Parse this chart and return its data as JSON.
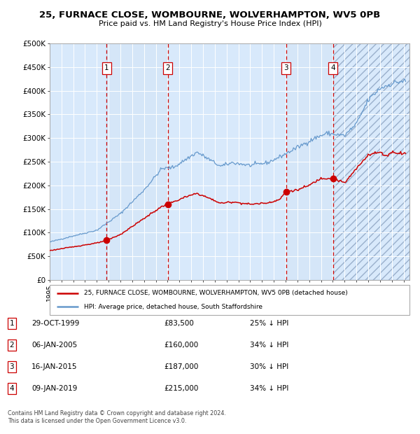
{
  "title1": "25, FURNACE CLOSE, WOMBOURNE, WOLVERHAMPTON, WV5 0PB",
  "title2": "Price paid vs. HM Land Registry's House Price Index (HPI)",
  "ylim": [
    0,
    500000
  ],
  "yticks": [
    0,
    50000,
    100000,
    150000,
    200000,
    250000,
    300000,
    350000,
    400000,
    450000,
    500000
  ],
  "ytick_labels": [
    "£0",
    "£50K",
    "£100K",
    "£150K",
    "£200K",
    "£250K",
    "£300K",
    "£350K",
    "£400K",
    "£450K",
    "£500K"
  ],
  "xlim_start": 1995.0,
  "xlim_end": 2025.5,
  "xticks": [
    1995,
    1996,
    1997,
    1998,
    1999,
    2000,
    2001,
    2002,
    2003,
    2004,
    2005,
    2006,
    2007,
    2008,
    2009,
    2010,
    2011,
    2012,
    2013,
    2014,
    2015,
    2016,
    2017,
    2018,
    2019,
    2020,
    2021,
    2022,
    2023,
    2024,
    2025
  ],
  "transaction_color": "#cc0000",
  "hpi_color": "#6699cc",
  "background_color": "#ddeeff",
  "vline_color": "#cc0000",
  "sale_dates": [
    1999.83,
    2005.02,
    2015.04,
    2019.03
  ],
  "sale_prices": [
    83500,
    160000,
    187000,
    215000
  ],
  "sale_labels": [
    "1",
    "2",
    "3",
    "4"
  ],
  "legend_line1": "25, FURNACE CLOSE, WOMBOURNE, WOLVERHAMPTON, WV5 0PB (detached house)",
  "legend_line2": "HPI: Average price, detached house, South Staffordshire",
  "table_rows": [
    [
      "1",
      "29-OCT-1999",
      "£83,500",
      "25% ↓ HPI"
    ],
    [
      "2",
      "06-JAN-2005",
      "£160,000",
      "34% ↓ HPI"
    ],
    [
      "3",
      "16-JAN-2015",
      "£187,000",
      "30% ↓ HPI"
    ],
    [
      "4",
      "09-JAN-2019",
      "£215,000",
      "34% ↓ HPI"
    ]
  ],
  "footer": "Contains HM Land Registry data © Crown copyright and database right 2024.\nThis data is licensed under the Open Government Licence v3.0."
}
